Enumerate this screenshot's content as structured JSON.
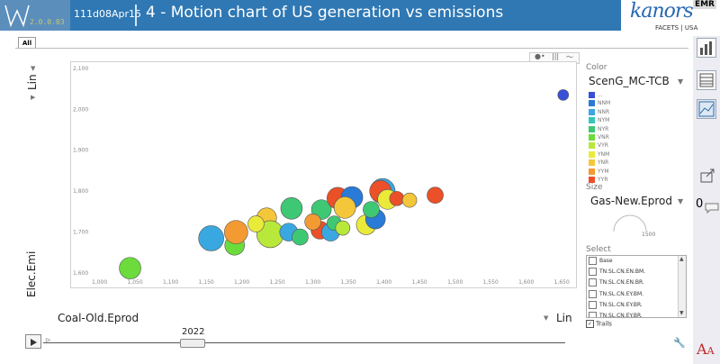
{
  "header": {
    "version": "2.0.0.03",
    "build": "111d08Apr15",
    "title": "4 - Motion chart of US generation vs emissions",
    "brand": "kanors",
    "brand_badge": "EMR",
    "brand_sub": "FACETS | USA"
  },
  "tabs": [
    {
      "label": "All"
    }
  ],
  "chart_controls": {
    "y_scale": "Lin",
    "y_metric": "Elec.Emi",
    "x_metric": "Coal-Old.Eprod",
    "x_scale": "Lin"
  },
  "sidebar": {
    "color_heading": "Color",
    "color_value": "ScenG_MC-TCB",
    "size_heading": "Size",
    "size_value": "Gas-New.Eprod",
    "size_scale_label": "1500",
    "select_heading": "Select",
    "trails_label": "Trails"
  },
  "legend": [
    {
      "label": "...",
      "color": "#3a4fd8"
    },
    {
      "label": "NNM",
      "color": "#2a7ad8"
    },
    {
      "label": "NNR",
      "color": "#3aa8e0"
    },
    {
      "label": "NYM",
      "color": "#34c7b8"
    },
    {
      "label": "NYR",
      "color": "#3ec874"
    },
    {
      "label": "VNR",
      "color": "#6cdc3c"
    },
    {
      "label": "VYR",
      "color": "#b8e83a"
    },
    {
      "label": "YNM",
      "color": "#eaea3a"
    },
    {
      "label": "YNR",
      "color": "#f4c63a"
    },
    {
      "label": "YYM",
      "color": "#f49a32"
    },
    {
      "label": "YYR",
      "color": "#ec5028"
    }
  ],
  "select_items": [
    {
      "label": "Base"
    },
    {
      "label": "TN.SL.CN.EN.BM."
    },
    {
      "label": "TN.SL.CN.EN.BR."
    },
    {
      "label": "TN.SL.CN.EY.BM."
    },
    {
      "label": "TN.SL.CN.EY.BR."
    },
    {
      "label": "TN.SL.CN.EY.BR."
    }
  ],
  "timeline": {
    "year": "2022"
  },
  "chart_data": {
    "type": "scatter",
    "xlabel": "Coal-Old.Eprod",
    "ylabel": "Elec.Emi",
    "xlim": [
      960,
      1670
    ],
    "ylim": [
      1565,
      2115
    ],
    "x_ticks": [
      "1,000",
      "1,050",
      "1,100",
      "1,150",
      "1,200",
      "1,250",
      "1,300",
      "1,350",
      "1,400",
      "1,450",
      "1,500",
      "1,550",
      "1,600",
      "1,650"
    ],
    "y_ticks": [
      "1,600",
      "1,700",
      "1,800",
      "1,900",
      "2,000",
      "2,100"
    ],
    "grid": false,
    "points": [
      {
        "x": 1652,
        "y": 2035,
        "size": 6,
        "color": "#3a4fd8"
      },
      {
        "x": 1043,
        "y": 1612,
        "size": 12,
        "color": "#6cdc3c"
      },
      {
        "x": 1157,
        "y": 1685,
        "size": 14,
        "color": "#3aa8e0"
      },
      {
        "x": 1190,
        "y": 1668,
        "size": 11,
        "color": "#6cdc3c"
      },
      {
        "x": 1192,
        "y": 1700,
        "size": 13,
        "color": "#f49a32"
      },
      {
        "x": 1235,
        "y": 1735,
        "size": 11,
        "color": "#f4c63a"
      },
      {
        "x": 1240,
        "y": 1695,
        "size": 15,
        "color": "#b8e83a"
      },
      {
        "x": 1266,
        "y": 1700,
        "size": 10,
        "color": "#3aa8e0"
      },
      {
        "x": 1282,
        "y": 1688,
        "size": 9,
        "color": "#3ec874"
      },
      {
        "x": 1270,
        "y": 1758,
        "size": 12,
        "color": "#3ec874"
      },
      {
        "x": 1312,
        "y": 1755,
        "size": 11,
        "color": "#3ec874"
      },
      {
        "x": 1310,
        "y": 1705,
        "size": 10,
        "color": "#ec5028"
      },
      {
        "x": 1325,
        "y": 1700,
        "size": 10,
        "color": "#3aa8e0"
      },
      {
        "x": 1330,
        "y": 1722,
        "size": 8,
        "color": "#3ec874"
      },
      {
        "x": 1335,
        "y": 1783,
        "size": 12,
        "color": "#ec5028"
      },
      {
        "x": 1355,
        "y": 1785,
        "size": 12,
        "color": "#2a7ad8"
      },
      {
        "x": 1345,
        "y": 1760,
        "size": 12,
        "color": "#f4c63a"
      },
      {
        "x": 1375,
        "y": 1718,
        "size": 11,
        "color": "#eaea3a"
      },
      {
        "x": 1388,
        "y": 1732,
        "size": 11,
        "color": "#2a7ad8"
      },
      {
        "x": 1382,
        "y": 1755,
        "size": 9,
        "color": "#3ec874"
      },
      {
        "x": 1398,
        "y": 1800,
        "size": 14,
        "color": "#3aa8e0"
      },
      {
        "x": 1395,
        "y": 1800,
        "size": 12,
        "color": "#ec5028"
      },
      {
        "x": 1405,
        "y": 1780,
        "size": 11,
        "color": "#eaea3a"
      },
      {
        "x": 1418,
        "y": 1782,
        "size": 8,
        "color": "#ec5028"
      },
      {
        "x": 1436,
        "y": 1778,
        "size": 8,
        "color": "#f4c63a"
      },
      {
        "x": 1472,
        "y": 1790,
        "size": 9,
        "color": "#ec5028"
      },
      {
        "x": 1342,
        "y": 1710,
        "size": 8,
        "color": "#b8e83a"
      },
      {
        "x": 1220,
        "y": 1720,
        "size": 9,
        "color": "#eaea3a"
      },
      {
        "x": 1300,
        "y": 1725,
        "size": 9,
        "color": "#f49a32"
      }
    ]
  }
}
